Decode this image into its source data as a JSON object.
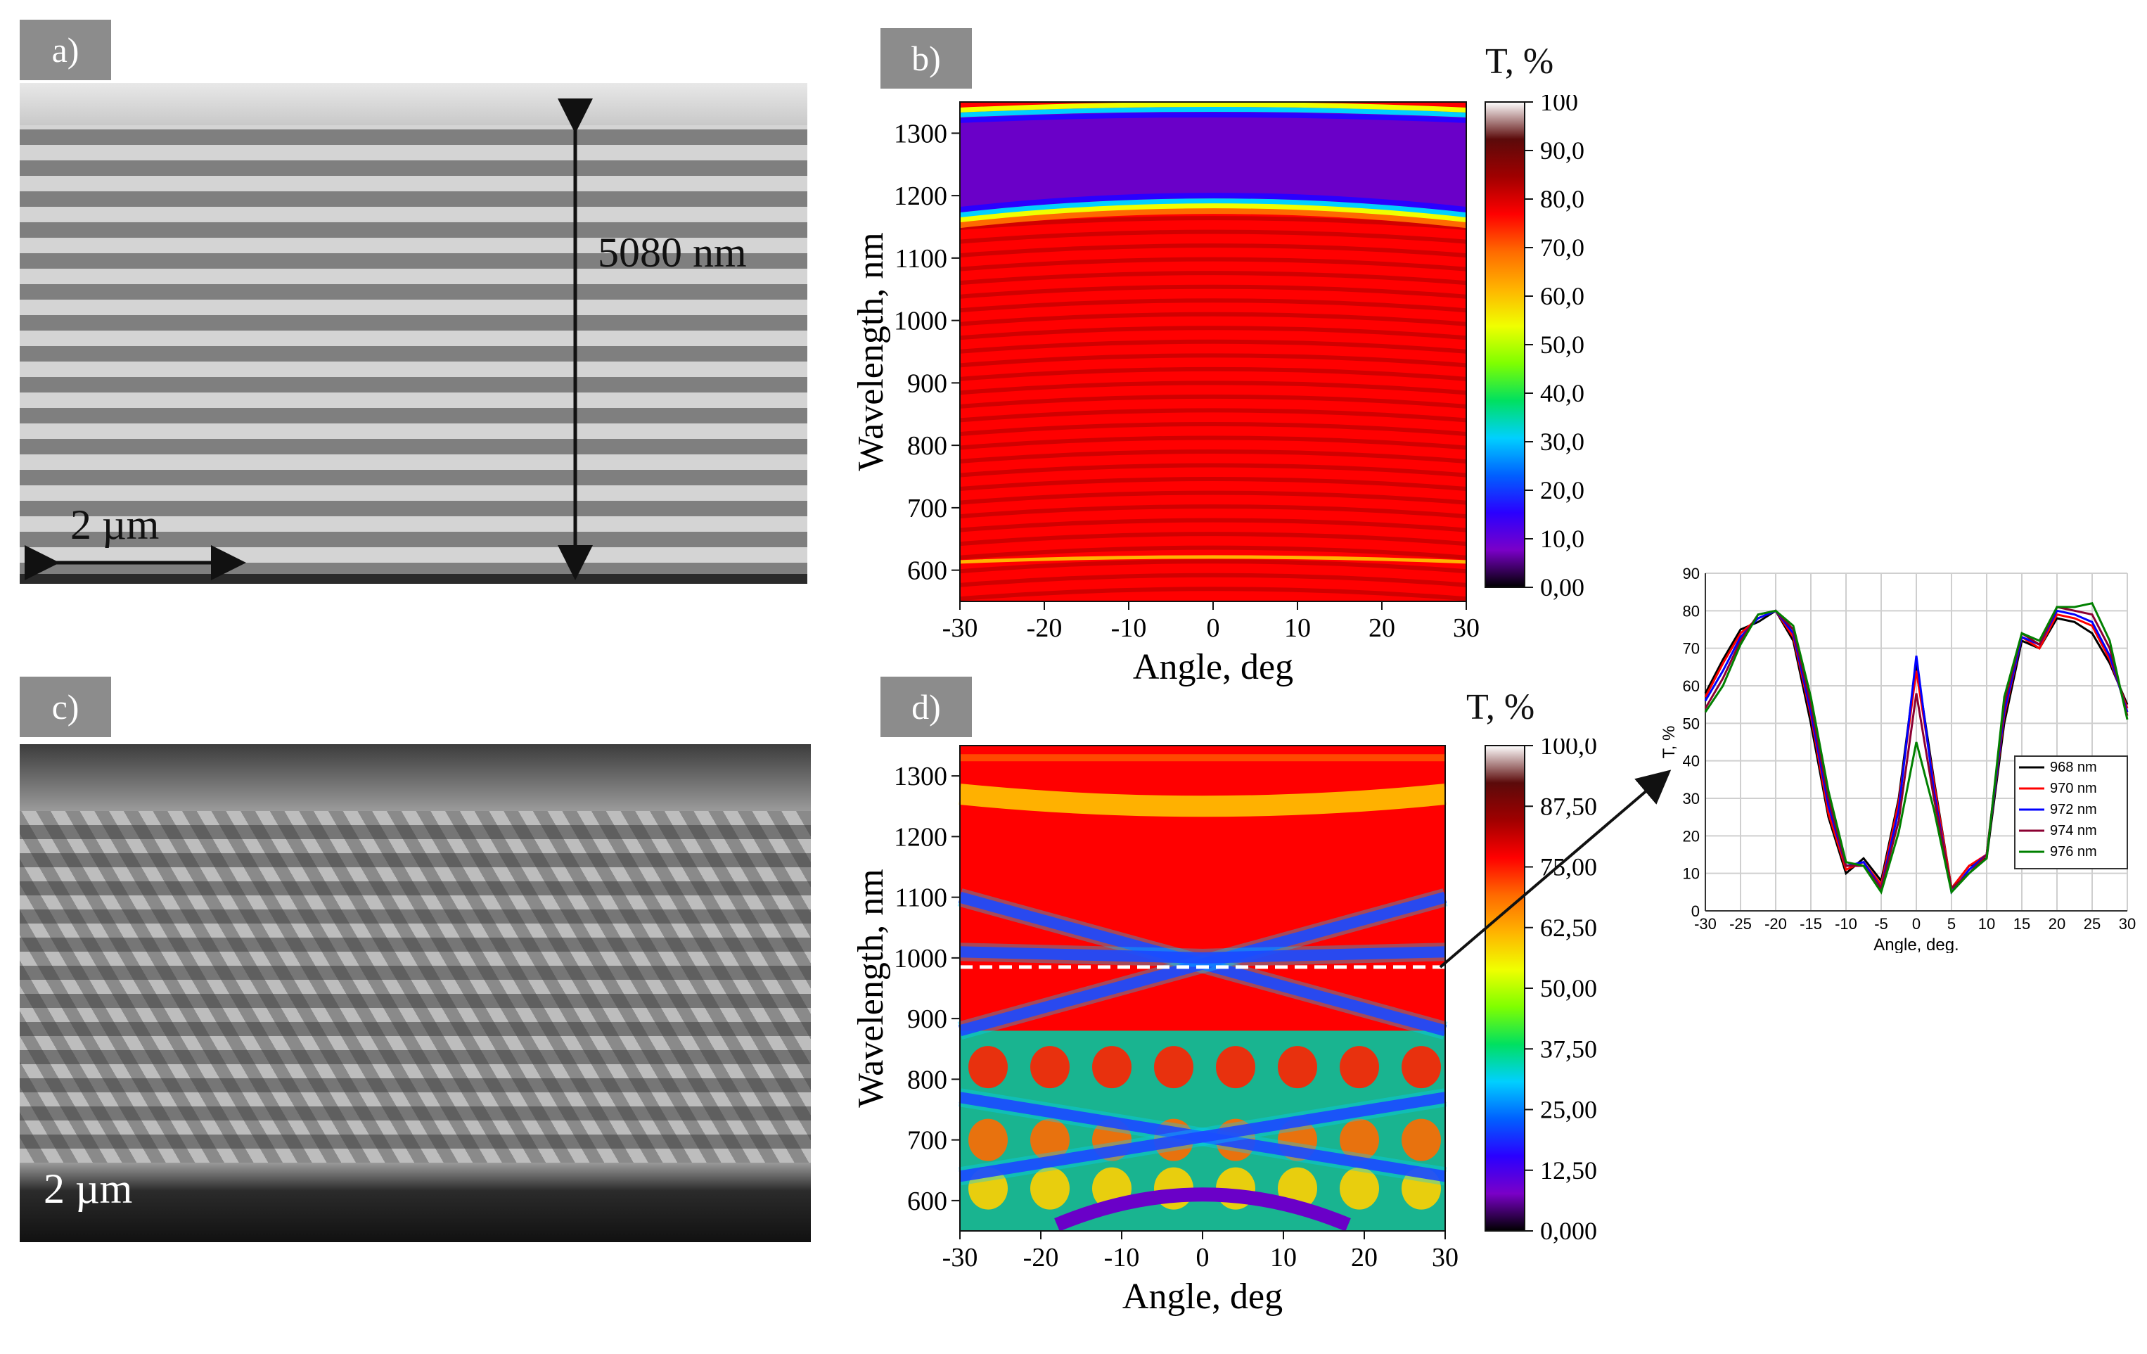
{
  "panels": {
    "a": {
      "tag": "a)",
      "thickness_label": "5080 nm",
      "scale_label": "2 µm"
    },
    "b": {
      "tag": "b)",
      "colorbar_title": "T, %",
      "colorbar_ticks": [
        "100",
        "90,0",
        "80,0",
        "70,0",
        "60,0",
        "50,0",
        "40,0",
        "30,0",
        "20,0",
        "10,0",
        "0,00"
      ],
      "colorbar_colors": [
        "#ffffff",
        "#5b0a0a",
        "#a00000",
        "#ff0000",
        "#ff6a00",
        "#ffb300",
        "#f0ff00",
        "#7fff00",
        "#00e060",
        "#00d0ff",
        "#0060ff",
        "#2a00ff",
        "#7a00c8",
        "#000000"
      ]
    },
    "c": {
      "tag": "c)",
      "scale_label": "2 µm"
    },
    "d": {
      "tag": "d)",
      "colorbar_title": "T, %",
      "colorbar_ticks": [
        "100,0",
        "87,50",
        "75,00",
        "62,50",
        "50,00",
        "37,50",
        "25,00",
        "12,50",
        "0,000"
      ],
      "colorbar_colors": [
        "#ffffff",
        "#5b0a0a",
        "#a00000",
        "#ff0000",
        "#ff6a00",
        "#ffb300",
        "#f0ff00",
        "#7fff00",
        "#00e060",
        "#00d0ff",
        "#0060ff",
        "#2a00ff",
        "#7a00c8",
        "#000000"
      ]
    }
  },
  "chart_data": [
    {
      "id": "b",
      "type": "heatmap",
      "xlabel": "Angle, deg",
      "ylabel": "Wavelength, nm",
      "xlim": [
        -30,
        30
      ],
      "ylim": [
        550,
        1350
      ],
      "xticks": [
        -30,
        -20,
        -10,
        0,
        10,
        20,
        30
      ],
      "yticks": [
        600,
        700,
        800,
        900,
        1000,
        1100,
        1200,
        1300
      ],
      "colorbar_range": [
        0,
        100
      ]
    },
    {
      "id": "d",
      "type": "heatmap",
      "xlabel": "Angle, deg",
      "ylabel": "Wavelength, nm",
      "xlim": [
        -30,
        30
      ],
      "ylim": [
        550,
        1350
      ],
      "xticks": [
        -30,
        -20,
        -10,
        0,
        10,
        20,
        30
      ],
      "yticks": [
        600,
        700,
        800,
        900,
        1000,
        1100,
        1200,
        1300
      ],
      "colorbar_range": [
        0,
        100
      ],
      "marker_wavelength": 985
    },
    {
      "id": "e",
      "type": "line",
      "xlabel": "Angle, deg.",
      "ylabel": "T, %",
      "xlim": [
        -30,
        30
      ],
      "ylim": [
        0,
        90
      ],
      "xticks": [
        -30,
        -25,
        -20,
        -15,
        -10,
        -5,
        0,
        5,
        10,
        15,
        20,
        25,
        30
      ],
      "yticks": [
        0,
        10,
        20,
        30,
        40,
        50,
        60,
        70,
        80,
        90
      ],
      "x": [
        -30,
        -27.5,
        -25,
        -22.5,
        -20,
        -17.5,
        -15,
        -12.5,
        -10,
        -7.5,
        -5,
        -2.5,
        0,
        2.5,
        5,
        7.5,
        10,
        12.5,
        15,
        17.5,
        20,
        22.5,
        25,
        27.5,
        30
      ],
      "series": [
        {
          "name": "968 nm",
          "color": "#000000",
          "values": [
            58,
            67,
            75,
            77,
            80,
            72,
            50,
            25,
            10,
            14,
            8,
            30,
            66,
            35,
            6,
            12,
            14,
            50,
            72,
            70,
            78,
            77,
            74,
            66,
            55
          ]
        },
        {
          "name": "970 nm",
          "color": "#ff0000",
          "values": [
            57,
            66,
            74,
            78,
            80,
            73,
            52,
            26,
            11,
            13,
            7,
            29,
            64,
            34,
            6,
            12,
            15,
            52,
            73,
            70,
            79,
            78,
            76,
            67,
            54
          ]
        },
        {
          "name": "972 nm",
          "color": "#0000ff",
          "values": [
            56,
            64,
            73,
            78,
            80,
            74,
            53,
            28,
            12,
            13,
            6,
            27,
            68,
            32,
            5,
            11,
            15,
            53,
            73,
            71,
            80,
            79,
            77,
            68,
            53
          ]
        },
        {
          "name": "974 nm",
          "color": "#8b0032",
          "values": [
            54,
            62,
            72,
            79,
            80,
            75,
            55,
            30,
            12,
            12,
            6,
            24,
            58,
            30,
            6,
            10,
            15,
            55,
            74,
            71,
            81,
            80,
            79,
            70,
            52
          ]
        },
        {
          "name": "976 nm",
          "color": "#008000",
          "values": [
            53,
            60,
            71,
            79,
            80,
            76,
            57,
            32,
            13,
            12,
            5,
            21,
            45,
            27,
            5,
            10,
            14,
            57,
            74,
            72,
            81,
            81,
            82,
            72,
            51
          ]
        }
      ],
      "legend_position": "right"
    }
  ]
}
